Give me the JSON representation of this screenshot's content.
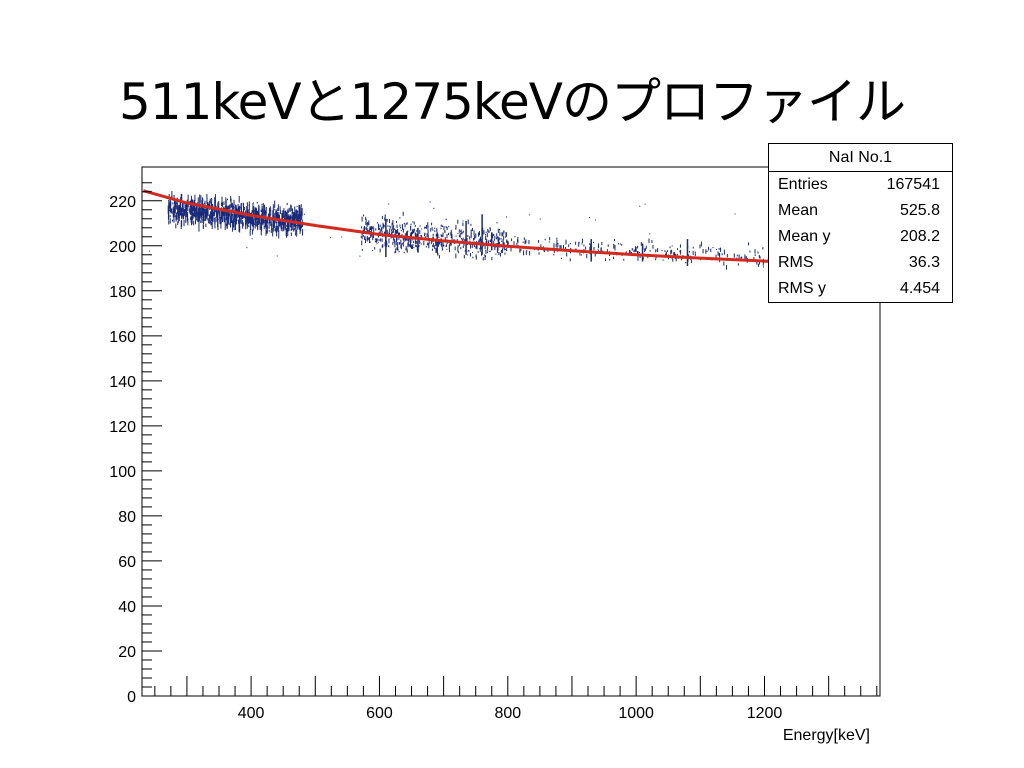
{
  "slide": {
    "title": "511keVと1275keVのプロファイル"
  },
  "stats": {
    "title": "NaI No.1",
    "rows": [
      {
        "label": "Entries",
        "value": "167541"
      },
      {
        "label": "Mean",
        "value": "525.8"
      },
      {
        "label": "Mean y",
        "value": "208.2"
      },
      {
        "label": "RMS",
        "value": "36.3"
      },
      {
        "label": "RMS y",
        "value": "4.454"
      }
    ]
  },
  "chart_data": {
    "type": "scatter",
    "title": "",
    "xlabel": "Energy[keV]",
    "ylabel": "",
    "xlim": [
      230,
      1380
    ],
    "ylim": [
      0,
      235
    ],
    "xticks": [
      400,
      600,
      800,
      1000,
      1200
    ],
    "yticks": [
      0,
      20,
      40,
      60,
      80,
      100,
      120,
      140,
      160,
      180,
      200,
      220
    ],
    "grid": false,
    "colors": {
      "points": "#1a2a7a",
      "fit": "#d42a1e"
    },
    "fit_curve": {
      "x": [
        232,
        300,
        400,
        500,
        600,
        700,
        800,
        900,
        1000,
        1100,
        1200,
        1260
      ],
      "y": [
        224.5,
        219.0,
        213.5,
        209.0,
        205.0,
        202.2,
        199.8,
        197.8,
        196.0,
        194.5,
        193.2,
        192.5
      ]
    },
    "clusters": [
      {
        "x_range": [
          270,
          480
        ],
        "y_center_at_start": 216,
        "y_center_at_end": 211,
        "spread": 4
      },
      {
        "x_range": [
          570,
          800
        ],
        "y_center_at_start": 206,
        "y_center_at_end": 201,
        "spread": 5
      },
      {
        "x_range": [
          800,
          1240
        ],
        "y_center_at_start": 200,
        "y_center_at_end": 194,
        "spread": 3
      }
    ],
    "spikes": [
      {
        "x": 610,
        "y1": 195,
        "y2": 212
      },
      {
        "x": 660,
        "y1": 197,
        "y2": 208
      },
      {
        "x": 690,
        "y1": 197,
        "y2": 206
      },
      {
        "x": 735,
        "y1": 196,
        "y2": 211
      },
      {
        "x": 760,
        "y1": 196,
        "y2": 214
      },
      {
        "x": 775,
        "y1": 198,
        "y2": 206
      },
      {
        "x": 930,
        "y1": 193,
        "y2": 203
      },
      {
        "x": 1010,
        "y1": 193,
        "y2": 201
      },
      {
        "x": 1080,
        "y1": 191,
        "y2": 203
      }
    ]
  }
}
